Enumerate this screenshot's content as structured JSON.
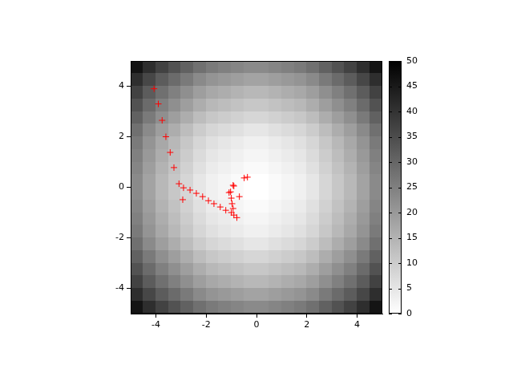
{
  "chart_data": {
    "type": "heatmap",
    "xlim": [
      -5,
      5
    ],
    "ylim": [
      -5,
      5
    ],
    "xticks": [
      -4,
      -2,
      0,
      2,
      4
    ],
    "yticks": [
      -4,
      -2,
      0,
      2,
      4
    ],
    "grid": false,
    "heatmap": {
      "x": [
        -4.75,
        -4.25,
        -3.75,
        -3.25,
        -2.75,
        -2.25,
        -1.75,
        -1.25,
        -0.75,
        -0.25,
        0.25,
        0.75,
        1.25,
        1.75,
        2.25,
        2.75,
        3.25,
        3.75,
        4.25,
        4.75
      ],
      "y": [
        4.75,
        4.25,
        3.75,
        3.25,
        2.75,
        2.25,
        1.75,
        1.25,
        0.75,
        0.25,
        -0.25,
        -0.75,
        -1.25,
        -1.75,
        -2.25,
        -2.75,
        -3.25,
        -3.75,
        -4.25,
        -4.75
      ],
      "z": [
        [
          46,
          41,
          37,
          34,
          31,
          28,
          26,
          25,
          24,
          23,
          23,
          24,
          25,
          26,
          28,
          31,
          34,
          37,
          41,
          46
        ],
        [
          41,
          36,
          32,
          29,
          26,
          23,
          21,
          20,
          19,
          18,
          18,
          19,
          20,
          21,
          23,
          26,
          29,
          32,
          36,
          41
        ],
        [
          37,
          32,
          28,
          25,
          22,
          19,
          17,
          16,
          15,
          14,
          14,
          15,
          16,
          17,
          19,
          22,
          25,
          28,
          32,
          37
        ],
        [
          34,
          29,
          25,
          22,
          19,
          16,
          14,
          13,
          12,
          11,
          11,
          12,
          13,
          14,
          16,
          19,
          22,
          25,
          29,
          34
        ],
        [
          31,
          26,
          22,
          19,
          16,
          13,
          11,
          10,
          9,
          8,
          8,
          9,
          10,
          11,
          13,
          16,
          19,
          22,
          26,
          31
        ],
        [
          28,
          23,
          19,
          16,
          13,
          10,
          8,
          7,
          6,
          5,
          5,
          6,
          7,
          8,
          10,
          13,
          16,
          19,
          23,
          28
        ],
        [
          26,
          21,
          17,
          14,
          11,
          8,
          6,
          5,
          4,
          3,
          3,
          4,
          5,
          6,
          8,
          11,
          14,
          17,
          21,
          26
        ],
        [
          25,
          20,
          16,
          13,
          10,
          7,
          5,
          4,
          3,
          2,
          2,
          3,
          4,
          5,
          7,
          10,
          13,
          16,
          20,
          25
        ],
        [
          24,
          19,
          15,
          12,
          9,
          6,
          4,
          3,
          2,
          1,
          1,
          2,
          3,
          4,
          6,
          9,
          12,
          15,
          19,
          24
        ],
        [
          23,
          18,
          14,
          11,
          8,
          5,
          3,
          2,
          1,
          0,
          0,
          1,
          2,
          3,
          5,
          8,
          11,
          14,
          18,
          23
        ],
        [
          23,
          18,
          14,
          11,
          8,
          5,
          3,
          2,
          1,
          0,
          0,
          1,
          2,
          3,
          5,
          8,
          11,
          14,
          18,
          23
        ],
        [
          24,
          19,
          15,
          12,
          9,
          6,
          4,
          3,
          2,
          1,
          1,
          2,
          3,
          4,
          6,
          9,
          12,
          15,
          19,
          24
        ],
        [
          25,
          20,
          16,
          13,
          10,
          7,
          5,
          4,
          3,
          2,
          2,
          3,
          4,
          5,
          7,
          10,
          13,
          16,
          20,
          25
        ],
        [
          26,
          21,
          17,
          14,
          11,
          8,
          6,
          5,
          4,
          3,
          3,
          4,
          5,
          6,
          8,
          11,
          14,
          17,
          21,
          26
        ],
        [
          28,
          23,
          19,
          16,
          13,
          10,
          8,
          7,
          6,
          5,
          5,
          6,
          7,
          8,
          10,
          13,
          16,
          19,
          23,
          28
        ],
        [
          31,
          26,
          22,
          19,
          16,
          13,
          11,
          10,
          9,
          8,
          8,
          9,
          10,
          11,
          13,
          16,
          19,
          22,
          26,
          31
        ],
        [
          34,
          29,
          25,
          22,
          19,
          16,
          14,
          13,
          12,
          11,
          11,
          12,
          13,
          14,
          16,
          19,
          22,
          25,
          29,
          34
        ],
        [
          37,
          32,
          28,
          25,
          22,
          19,
          17,
          16,
          15,
          14,
          14,
          15,
          16,
          17,
          19,
          22,
          25,
          28,
          32,
          37
        ],
        [
          41,
          36,
          32,
          29,
          26,
          23,
          21,
          20,
          19,
          18,
          18,
          19,
          20,
          21,
          23,
          26,
          29,
          32,
          36,
          41
        ],
        [
          46,
          41,
          37,
          34,
          31,
          28,
          26,
          25,
          24,
          23,
          23,
          24,
          25,
          26,
          28,
          31,
          34,
          37,
          41,
          46
        ]
      ],
      "colorbar_lim": [
        0,
        50
      ],
      "colorbar_ticks": [
        0,
        5,
        10,
        15,
        20,
        25,
        30,
        35,
        40,
        45,
        50
      ]
    },
    "series": [
      {
        "type": "scatter",
        "color": "#ff0000",
        "marker": "plus",
        "x": [
          -4.07,
          -3.9,
          -3.75,
          -3.6,
          -3.43,
          -3.28,
          -3.08,
          -2.9,
          -2.93,
          -2.64,
          -2.39,
          -2.14,
          -1.91,
          -1.69,
          -1.44,
          -1.22,
          -1.0,
          -0.9,
          -0.78,
          -1.03,
          -1.09,
          -1.0,
          -0.97,
          -0.93,
          -0.93,
          -0.9,
          -0.68,
          -0.49,
          -0.36
        ],
        "y": [
          3.9,
          3.3,
          2.65,
          2.0,
          1.38,
          0.78,
          0.14,
          -0.02,
          -0.49,
          -0.11,
          -0.24,
          -0.37,
          -0.53,
          -0.65,
          -0.78,
          -0.91,
          -1.0,
          -1.1,
          -1.2,
          -0.18,
          -0.21,
          -0.43,
          -0.65,
          -0.84,
          0.08,
          0.05,
          -0.37,
          0.37,
          0.4
        ]
      }
    ]
  }
}
